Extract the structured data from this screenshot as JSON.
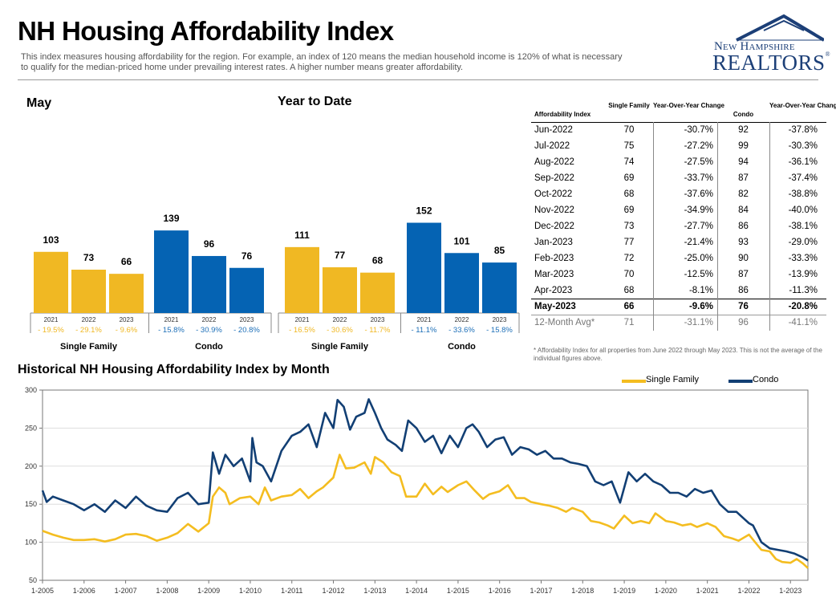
{
  "header": {
    "title": "NH Housing Affordability Index",
    "subtitle": "This index measures housing affordability for the region. For example, an index of 120 means the median household income is 120% of what is necessary to qualify for the median-priced home under prevailing interest rates. A higher number means greater affordability.",
    "logo_line1": "New Hampshire",
    "logo_line2": "REALTORS",
    "logo_mark": "®"
  },
  "colors": {
    "single_family": "#f0b823",
    "condo": "#0563b3",
    "line_single": "#f4bd20",
    "line_condo": "#123f74",
    "positive": "#f0b823",
    "negative": "#1d6fb8"
  },
  "chart_data": [
    {
      "type": "bar",
      "title": "May",
      "groups": [
        {
          "name": "Single Family",
          "categories": [
            "2021",
            "2022",
            "2023"
          ],
          "values": [
            103,
            73,
            66
          ],
          "changes": [
            "- 19.5%",
            "- 29.1%",
            "- 9.6%"
          ]
        },
        {
          "name": "Condo",
          "categories": [
            "2021",
            "2022",
            "2023"
          ],
          "values": [
            139,
            96,
            76
          ],
          "changes": [
            "- 15.8%",
            "- 30.9%",
            "- 20.8%"
          ]
        }
      ]
    },
    {
      "type": "bar",
      "title": "Year to Date",
      "groups": [
        {
          "name": "Single Family",
          "categories": [
            "2021",
            "2022",
            "2023"
          ],
          "values": [
            111,
            77,
            68
          ],
          "changes": [
            "- 16.5%",
            "- 30.6%",
            "- 11.7%"
          ]
        },
        {
          "name": "Condo",
          "categories": [
            "2021",
            "2022",
            "2023"
          ],
          "values": [
            152,
            101,
            85
          ],
          "changes": [
            "- 11.1%",
            "- 33.6%",
            "- 15.8%"
          ]
        }
      ]
    },
    {
      "type": "table",
      "columns": [
        "Affordability Index",
        "Single Family",
        "Year-Over-Year Change",
        "Condo",
        "Year-Over-Year Change"
      ],
      "rows": [
        [
          "Jun-2022",
          "70",
          "-30.7%",
          "92",
          "-37.8%"
        ],
        [
          "Jul-2022",
          "75",
          "-27.2%",
          "99",
          "-30.3%"
        ],
        [
          "Aug-2022",
          "74",
          "-27.5%",
          "94",
          "-36.1%"
        ],
        [
          "Sep-2022",
          "69",
          "-33.7%",
          "87",
          "-37.4%"
        ],
        [
          "Oct-2022",
          "68",
          "-37.6%",
          "82",
          "-38.8%"
        ],
        [
          "Nov-2022",
          "69",
          "-34.9%",
          "84",
          "-40.0%"
        ],
        [
          "Dec-2022",
          "73",
          "-27.7%",
          "86",
          "-38.1%"
        ],
        [
          "Jan-2023",
          "77",
          "-21.4%",
          "93",
          "-29.0%"
        ],
        [
          "Feb-2023",
          "72",
          "-25.0%",
          "90",
          "-33.3%"
        ],
        [
          "Mar-2023",
          "70",
          "-12.5%",
          "87",
          "-13.9%"
        ],
        [
          "Apr-2023",
          "68",
          "-8.1%",
          "86",
          "-11.3%"
        ],
        [
          "May-2023",
          "66",
          "-9.6%",
          "76",
          "-20.8%"
        ]
      ],
      "summary": [
        "12-Month Avg*",
        "71",
        "-31.1%",
        "96",
        "-41.1%"
      ],
      "footnote": "* Affordability Index for all properties from June 2022 through May 2023. This is not the average of the individual figures above."
    },
    {
      "type": "line",
      "title": "Historical NH Housing Affordability Index by Month",
      "ylim": [
        50,
        300
      ],
      "yticks": [
        50,
        100,
        150,
        200,
        250,
        300
      ],
      "xlim": [
        2005.0,
        2023.42
      ],
      "xticks": [
        "1-2005",
        "1-2006",
        "1-2007",
        "1-2008",
        "1-2009",
        "1-2010",
        "1-2011",
        "1-2012",
        "1-2013",
        "1-2014",
        "1-2015",
        "1-2016",
        "1-2017",
        "1-2018",
        "1-2019",
        "1-2020",
        "1-2021",
        "1-2022",
        "1-2023"
      ],
      "legend": [
        "Single Family",
        "Condo"
      ],
      "series": [
        {
          "name": "Single Family",
          "x": [
            2005.0,
            2005.25,
            2005.5,
            2005.75,
            2006.0,
            2006.25,
            2006.5,
            2006.75,
            2007.0,
            2007.25,
            2007.5,
            2007.75,
            2008.0,
            2008.25,
            2008.5,
            2008.75,
            2009.0,
            2009.1,
            2009.25,
            2009.4,
            2009.5,
            2009.75,
            2010.0,
            2010.2,
            2010.35,
            2010.5,
            2010.75,
            2011.0,
            2011.2,
            2011.4,
            2011.6,
            2011.75,
            2012.0,
            2012.15,
            2012.3,
            2012.5,
            2012.75,
            2012.9,
            2013.0,
            2013.2,
            2013.4,
            2013.6,
            2013.75,
            2014.0,
            2014.2,
            2014.4,
            2014.6,
            2014.75,
            2015.0,
            2015.2,
            2015.4,
            2015.6,
            2015.75,
            2016.0,
            2016.2,
            2016.4,
            2016.6,
            2016.75,
            2017.0,
            2017.2,
            2017.4,
            2017.6,
            2017.75,
            2018.0,
            2018.2,
            2018.4,
            2018.6,
            2018.75,
            2019.0,
            2019.2,
            2019.4,
            2019.6,
            2019.75,
            2020.0,
            2020.2,
            2020.4,
            2020.6,
            2020.75,
            2021.0,
            2021.2,
            2021.4,
            2021.6,
            2021.75,
            2022.0,
            2022.15,
            2022.3,
            2022.5,
            2022.65,
            2022.8,
            2023.0,
            2023.15,
            2023.3,
            2023.42
          ],
          "y": [
            115,
            110,
            106,
            103,
            103,
            104,
            101,
            104,
            110,
            111,
            108,
            102,
            106,
            112,
            124,
            114,
            125,
            160,
            172,
            165,
            150,
            158,
            160,
            150,
            172,
            155,
            160,
            162,
            170,
            158,
            167,
            172,
            185,
            215,
            197,
            198,
            205,
            190,
            212,
            205,
            192,
            187,
            160,
            160,
            177,
            163,
            173,
            166,
            175,
            180,
            168,
            157,
            163,
            167,
            175,
            158,
            158,
            153,
            150,
            148,
            145,
            140,
            145,
            140,
            128,
            126,
            122,
            118,
            135,
            125,
            128,
            125,
            138,
            128,
            126,
            122,
            124,
            120,
            125,
            120,
            108,
            105,
            102,
            110,
            100,
            90,
            88,
            78,
            74,
            73,
            78,
            72,
            66
          ]
        },
        {
          "name": "Condo",
          "x": [
            2005.0,
            2005.1,
            2005.25,
            2005.5,
            2005.75,
            2006.0,
            2006.25,
            2006.5,
            2006.75,
            2007.0,
            2007.25,
            2007.5,
            2007.75,
            2008.0,
            2008.25,
            2008.5,
            2008.75,
            2009.0,
            2009.1,
            2009.25,
            2009.4,
            2009.6,
            2009.8,
            2010.0,
            2010.05,
            2010.15,
            2010.3,
            2010.5,
            2010.75,
            2011.0,
            2011.2,
            2011.4,
            2011.6,
            2011.8,
            2012.0,
            2012.1,
            2012.25,
            2012.4,
            2012.55,
            2012.75,
            2012.85,
            2013.0,
            2013.15,
            2013.3,
            2013.5,
            2013.65,
            2013.8,
            2014.0,
            2014.2,
            2014.4,
            2014.6,
            2014.8,
            2015.0,
            2015.2,
            2015.35,
            2015.5,
            2015.7,
            2015.9,
            2016.1,
            2016.3,
            2016.5,
            2016.7,
            2016.9,
            2017.1,
            2017.3,
            2017.5,
            2017.7,
            2017.9,
            2018.1,
            2018.3,
            2018.5,
            2018.7,
            2018.9,
            2019.1,
            2019.3,
            2019.5,
            2019.7,
            2019.9,
            2020.1,
            2020.3,
            2020.5,
            2020.7,
            2020.9,
            2021.1,
            2021.3,
            2021.5,
            2021.7,
            2021.9,
            2022.0,
            2022.1,
            2022.3,
            2022.5,
            2022.7,
            2022.9,
            2023.1,
            2023.3,
            2023.42
          ],
          "y": [
            168,
            153,
            160,
            155,
            150,
            142,
            150,
            140,
            155,
            145,
            160,
            148,
            142,
            140,
            158,
            165,
            150,
            152,
            218,
            190,
            215,
            200,
            210,
            180,
            237,
            205,
            200,
            180,
            220,
            240,
            245,
            255,
            225,
            270,
            250,
            287,
            278,
            248,
            265,
            270,
            288,
            270,
            250,
            235,
            228,
            220,
            260,
            250,
            232,
            240,
            217,
            240,
            225,
            250,
            255,
            245,
            225,
            235,
            238,
            215,
            225,
            222,
            215,
            220,
            210,
            210,
            205,
            203,
            200,
            180,
            175,
            180,
            152,
            192,
            180,
            190,
            180,
            175,
            165,
            165,
            160,
            170,
            165,
            168,
            150,
            140,
            140,
            130,
            125,
            122,
            100,
            92,
            90,
            88,
            85,
            80,
            76
          ]
        }
      ]
    }
  ],
  "panels": {
    "may_title": "May",
    "ytd_title": "Year to Date",
    "group_sf": "Single Family",
    "group_condo": "Condo"
  },
  "legend": {
    "single_family": "Single Family",
    "condo": "Condo"
  }
}
